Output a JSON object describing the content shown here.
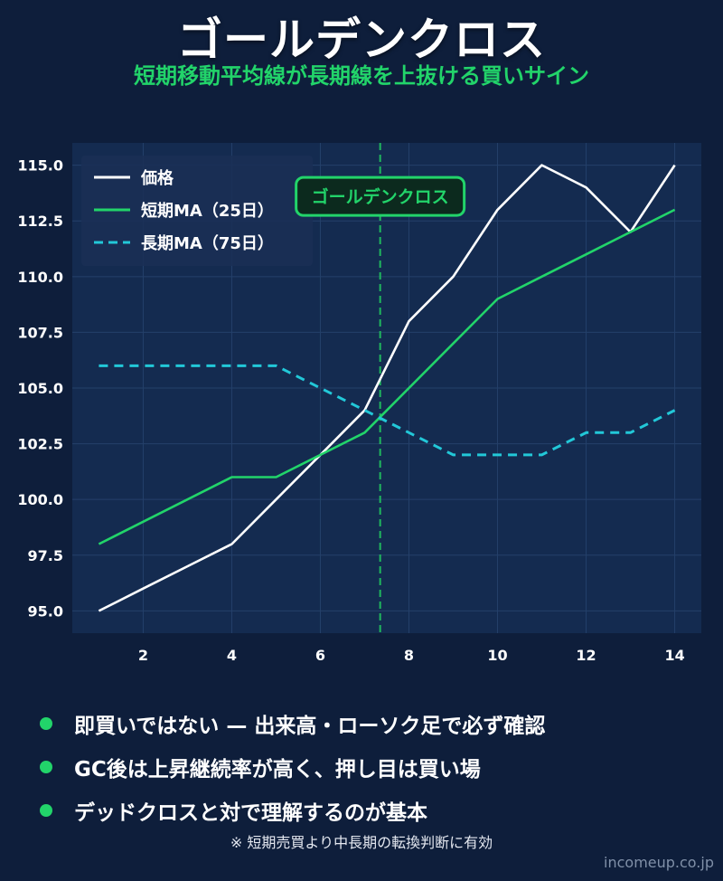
{
  "header": {
    "title": "ゴールデンクロス",
    "subtitle": "短期移動平均線が長期線を上抜ける買いサイン"
  },
  "chart_data": {
    "type": "line",
    "x": [
      1,
      2,
      3,
      4,
      5,
      6,
      7,
      8,
      9,
      10,
      11,
      12,
      13,
      14
    ],
    "series": [
      {
        "name": "価格",
        "values": [
          95,
          96,
          97,
          98,
          100,
          102,
          104,
          108,
          110,
          113,
          115,
          114,
          112,
          115
        ],
        "color": "#ffffff",
        "style": "solid"
      },
      {
        "name": "短期MA（25日）",
        "values": [
          98,
          99,
          100,
          101,
          101,
          102,
          103,
          105,
          107,
          109,
          110,
          111,
          112,
          113
        ],
        "color": "#22d46a",
        "style": "solid"
      },
      {
        "name": "長期MA（75日）",
        "values": [
          106,
          106,
          106,
          106,
          106,
          105,
          104,
          103,
          102,
          102,
          102,
          103,
          103,
          104
        ],
        "color": "#22c8d8",
        "style": "dashed"
      }
    ],
    "x_ticks": [
      2,
      4,
      6,
      8,
      10,
      12,
      14
    ],
    "y_ticks": [
      95.0,
      97.5,
      100.0,
      102.5,
      105.0,
      107.5,
      110.0,
      112.5,
      115.0
    ],
    "xlim": [
      0.4,
      14.6
    ],
    "ylim": [
      94.0,
      116.0
    ],
    "grid": true,
    "legend": "top-left",
    "crossover_x": 7.35,
    "annotation": {
      "text": "ゴールデンクロス",
      "x": 7.35,
      "y": 113.6
    }
  },
  "bullets": [
    "即買いではない — 出来高・ローソク足で必ず確認",
    "GC後は上昇継続率が高く、押し目は買い場",
    "デッドクロスと対で理解するのが基本"
  ],
  "note": "※ 短期売買より中長期の転換判断に有効",
  "watermark": "incomeup.co.jp"
}
